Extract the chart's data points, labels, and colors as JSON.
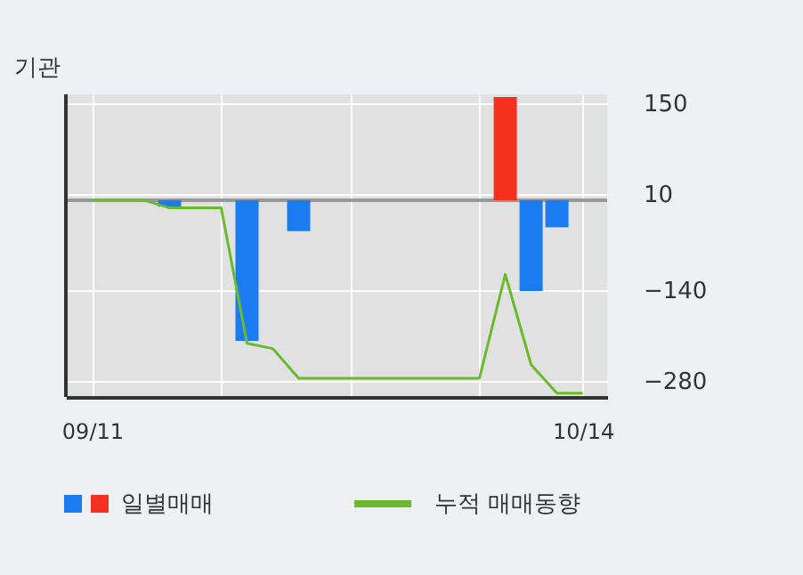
{
  "chart_data": {
    "type": "bar",
    "title": "기관",
    "categories": [
      "09/11",
      null,
      null,
      null,
      null,
      null,
      null,
      null,
      null,
      null,
      null,
      null,
      null,
      null,
      null,
      null,
      null,
      null,
      null,
      "10/14"
    ],
    "series": [
      {
        "name": "일별매매",
        "values": [
          null,
          null,
          null,
          -10,
          null,
          null,
          -218,
          null,
          -48,
          null,
          null,
          null,
          null,
          null,
          null,
          null,
          160,
          -141,
          -42,
          null
        ],
        "colors": [
          null,
          null,
          null,
          "#1b7cf2",
          null,
          null,
          "#1b7cf2",
          null,
          "#1b7cf2",
          null,
          null,
          null,
          null,
          null,
          null,
          null,
          "#f5301e",
          "#1b7cf2",
          "#1b7cf2",
          null
        ]
      },
      {
        "name": "누적 매매동향",
        "type": "line",
        "color": "#6aba2e",
        "values": [
          0,
          0,
          0,
          -12,
          -12,
          -12,
          -222,
          -230,
          -276,
          -276,
          -276,
          -276,
          -276,
          -276,
          -276,
          -276,
          -115,
          -255,
          -299,
          -299
        ]
      }
    ],
    "ylim": [
      -305,
      164
    ],
    "yticks": [
      150,
      10,
      -140,
      -280
    ],
    "grid": true,
    "legend": "bottom",
    "ref_lines": [
      {
        "axis": "y",
        "value": 0,
        "color": "#999999"
      }
    ]
  }
}
